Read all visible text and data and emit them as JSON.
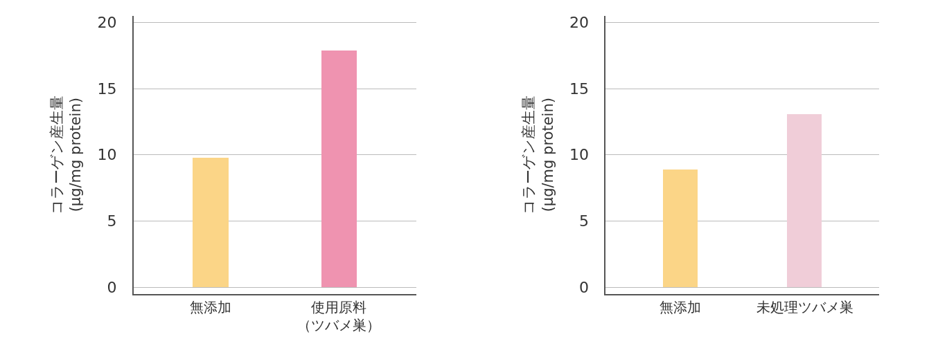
{
  "chart_data": [
    {
      "type": "bar",
      "categories": [
        "無添加",
        "使用原料（ツバメ巣）"
      ],
      "values": [
        9.8,
        17.9
      ],
      "colors": [
        "#fbd587",
        "#ef93b0"
      ],
      "ylabel": "コラーゲン産生量(μg/mg protein)",
      "ylim": [
        -0.5,
        20.5
      ],
      "yticks": [
        0,
        5,
        10,
        15,
        20
      ],
      "grid": "y"
    },
    {
      "type": "bar",
      "categories": [
        "無添加",
        "未処理ツバメ巣"
      ],
      "values": [
        8.9,
        13.1
      ],
      "colors": [
        "#fbd587",
        "#f0cdd8"
      ],
      "ylabel": "コラーゲン産生量(μg/mg protein)",
      "ylim": [
        -0.5,
        20.5
      ],
      "yticks": [
        0,
        5,
        10,
        15,
        20
      ],
      "grid": "y"
    }
  ]
}
